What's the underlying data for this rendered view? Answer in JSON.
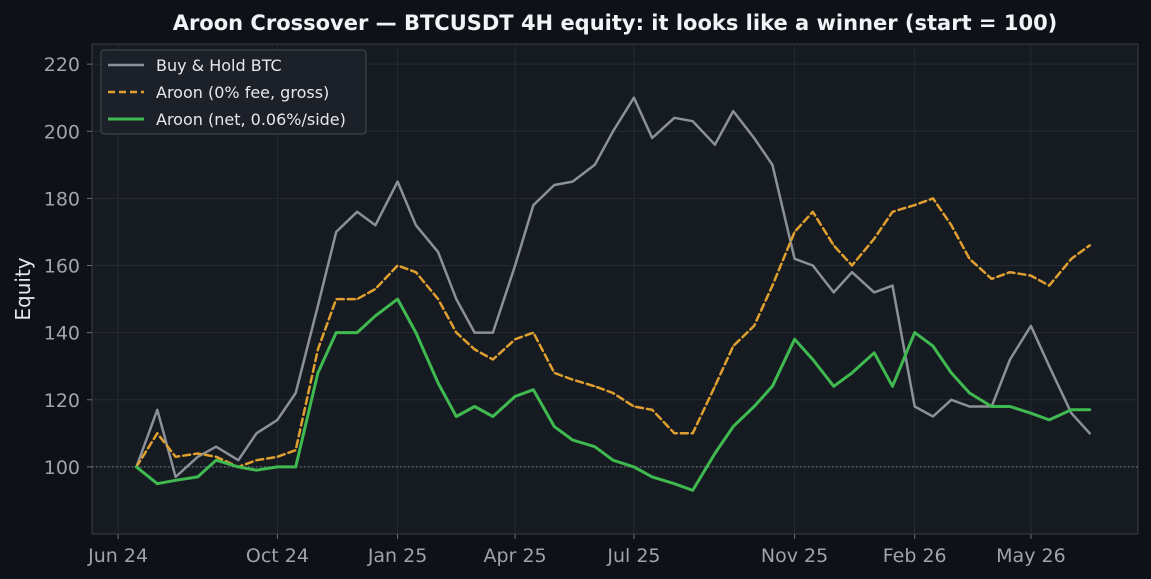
{
  "chart_data": {
    "type": "line",
    "title": "Aroon Crossover — BTCUSDT 4H equity: it looks like a winner (start = 100)",
    "xlabel": "",
    "ylabel": "Equity",
    "x_ticks": [
      "Jun 24",
      "Oct 24",
      "Jan 25",
      "Apr 25",
      "Jul 25",
      "Nov 25",
      "Feb 26",
      "May 26"
    ],
    "y_ticks": [
      100,
      120,
      140,
      160,
      180,
      200,
      220
    ],
    "xlim": [
      "2024-05-12",
      "2026-07-22"
    ],
    "ylim": [
      80,
      226
    ],
    "reference_line": 100,
    "grid": true,
    "legend_position": "top-left",
    "x": [
      "2024-06-15",
      "2024-07-01",
      "2024-07-15",
      "2024-08-01",
      "2024-08-15",
      "2024-09-01",
      "2024-09-15",
      "2024-10-01",
      "2024-10-15",
      "2024-11-01",
      "2024-11-15",
      "2024-12-01",
      "2024-12-15",
      "2025-01-01",
      "2025-01-15",
      "2025-02-01",
      "2025-02-15",
      "2025-03-01",
      "2025-03-15",
      "2025-04-01",
      "2025-04-15",
      "2025-05-01",
      "2025-05-15",
      "2025-06-01",
      "2025-06-15",
      "2025-07-01",
      "2025-07-15",
      "2025-08-01",
      "2025-08-15",
      "2025-09-01",
      "2025-09-15",
      "2025-10-01",
      "2025-10-15",
      "2025-11-01",
      "2025-11-15",
      "2025-12-01",
      "2025-12-15",
      "2026-01-01",
      "2026-01-15",
      "2026-02-01",
      "2026-02-15",
      "2026-03-01",
      "2026-03-15",
      "2026-04-01",
      "2026-04-15",
      "2026-05-01",
      "2026-05-15",
      "2026-06-01",
      "2026-06-15"
    ],
    "series": [
      {
        "name": "Buy & Hold BTC",
        "color": "#8b9099",
        "dash": "solid",
        "values": [
          100,
          117,
          97,
          103,
          106,
          102,
          110,
          114,
          122,
          148,
          170,
          176,
          172,
          185,
          172,
          164,
          150,
          140,
          140,
          160,
          178,
          184,
          185,
          190,
          200,
          210,
          198,
          204,
          203,
          196,
          206,
          198,
          190,
          162,
          160,
          152,
          158,
          152,
          154,
          118,
          115,
          120,
          118,
          118,
          132,
          142,
          130,
          116,
          110
        ]
      },
      {
        "name": "Aroon (0% fee, gross)",
        "color": "#e0a030",
        "dash": "dashed",
        "values": [
          100,
          110,
          103,
          104,
          103,
          100,
          102,
          103,
          105,
          135,
          150,
          150,
          153,
          160,
          158,
          150,
          140,
          135,
          132,
          138,
          140,
          128,
          126,
          124,
          122,
          118,
          117,
          110,
          110,
          124,
          136,
          142,
          154,
          170,
          176,
          166,
          160,
          168,
          176,
          178,
          180,
          172,
          162,
          156,
          158,
          157,
          154,
          162,
          166
        ]
      },
      {
        "name": "Aroon (net, 0.06%/side)",
        "color": "#3fb950",
        "dash": "solid",
        "values": [
          100,
          95,
          96,
          97,
          102,
          100,
          99,
          100,
          100,
          128,
          140,
          140,
          145,
          150,
          140,
          125,
          115,
          118,
          115,
          121,
          123,
          112,
          108,
          106,
          102,
          100,
          97,
          95,
          93,
          104,
          112,
          118,
          124,
          138,
          132,
          124,
          128,
          134,
          124,
          140,
          136,
          128,
          122,
          118,
          118,
          116,
          114,
          117,
          117
        ]
      }
    ]
  }
}
